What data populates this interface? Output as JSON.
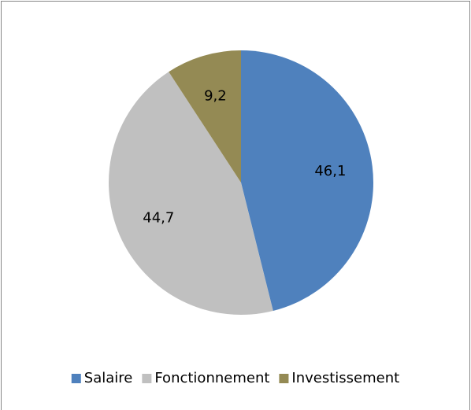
{
  "chart_data": {
    "type": "pie",
    "categories": [
      "Salaire",
      "Fonctionnement",
      "Investissement"
    ],
    "values": [
      46.1,
      44.7,
      9.2
    ],
    "value_labels": [
      "46,1",
      "44,7",
      "9,2"
    ],
    "colors": [
      "#4f81bd",
      "#c0c0c0",
      "#948a54"
    ],
    "legend": "bottom"
  }
}
